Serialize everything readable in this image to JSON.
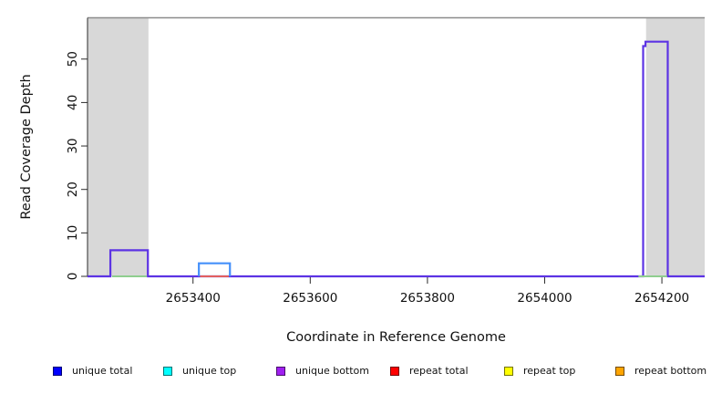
{
  "chart_data": {
    "type": "line",
    "title": "",
    "xlabel": "Coordinate in Reference Genome",
    "ylabel": "Read Coverage Depth",
    "xlim": [
      2653220,
      2654273
    ],
    "ylim": [
      0,
      59.5
    ],
    "xticks": [
      2653400,
      2653600,
      2653800,
      2654000,
      2654200
    ],
    "xtick_labels": [
      "2653400",
      "2653600",
      "2653800",
      "2654000",
      "2654200"
    ],
    "yticks": [
      0,
      10,
      20,
      30,
      40,
      50
    ],
    "ytick_labels": [
      "0",
      "10",
      "20",
      "30",
      "40",
      "50"
    ],
    "grid": false,
    "legend_position": "bottom",
    "colors": {
      "shaded_band": "#d8d8d8",
      "plot_top_border": "#8c8c8c",
      "axis": "#2b2b2b",
      "text": "#111111"
    },
    "shaded_regions": [
      {
        "name": "left-gray-band",
        "x0": 2653220,
        "x1": 2653324
      },
      {
        "name": "right-gray-band",
        "x0": 2654173,
        "x1": 2654273
      }
    ],
    "series": [
      {
        "name": "unique-bottom-total-coverage",
        "color": "#5c33e4",
        "width": 2.2,
        "points": [
          [
            2653220,
            0
          ],
          [
            2653259,
            0
          ],
          [
            2653259,
            6
          ],
          [
            2653323,
            6
          ],
          [
            2653323,
            0
          ],
          [
            2654168,
            0
          ],
          [
            2654168,
            53
          ],
          [
            2654172,
            53
          ],
          [
            2654172,
            54
          ],
          [
            2654210,
            54
          ],
          [
            2654210,
            0
          ],
          [
            2654273,
            0
          ]
        ]
      },
      {
        "name": "repeat-zero-segment",
        "color": "#e25f5f",
        "width": 2,
        "points": [
          [
            2653412,
            0
          ],
          [
            2653461,
            0
          ]
        ]
      },
      {
        "name": "unique-top-total-coverage",
        "color": "#4590fa",
        "width": 2.2,
        "points": [
          [
            2653410,
            0
          ],
          [
            2653410,
            3
          ],
          [
            2653463,
            3
          ],
          [
            2653463,
            0
          ]
        ]
      },
      {
        "name": "green-zero-segment-left",
        "color": "#8fce8f",
        "width": 2,
        "points": [
          [
            2653262,
            0
          ],
          [
            2653321,
            0
          ]
        ]
      },
      {
        "name": "green-zero-segment-right",
        "color": "#8fce8f",
        "width": 2,
        "points": [
          [
            2654160,
            0
          ],
          [
            2654209,
            0
          ]
        ]
      }
    ]
  },
  "legend": {
    "items": [
      {
        "label": "unique total",
        "color": "#0000ff"
      },
      {
        "label": "unique top",
        "color": "#00ffff"
      },
      {
        "label": "unique bottom",
        "color": "#a020f0"
      },
      {
        "label": "repeat total",
        "color": "#ff0000"
      },
      {
        "label": "repeat top",
        "color": "#ffff00"
      },
      {
        "label": "repeat bottom",
        "color": "#ffa500"
      }
    ]
  }
}
